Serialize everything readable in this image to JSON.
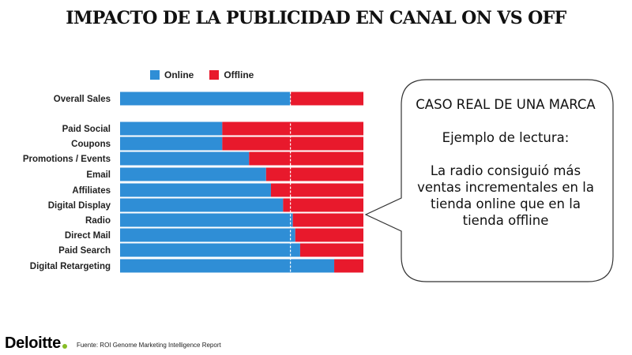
{
  "page": {
    "title": "IMPACTO DE LA PUBLICIDAD EN CANAL ON VS OFF"
  },
  "chart_data": {
    "type": "bar",
    "orientation": "horizontal",
    "stacked": true,
    "normalized_percent": true,
    "categories": [
      "Overall Sales",
      "Paid Social",
      "Coupons",
      "Promotions / Events",
      "Email",
      "Affiliates",
      "Digital Display",
      "Radio",
      "Direct Mail",
      "Paid Search",
      "Digital Retargeting"
    ],
    "series": [
      {
        "name": "Online",
        "color": "#2f8ed6",
        "values": [
          70,
          42,
          42,
          53,
          60,
          62,
          67,
          71,
          72,
          74,
          88
        ]
      },
      {
        "name": "Offline",
        "color": "#e8192c",
        "values": [
          30,
          58,
          58,
          47,
          40,
          38,
          33,
          29,
          28,
          26,
          12
        ]
      }
    ],
    "reference_line": 70,
    "xlim": [
      0,
      100
    ],
    "legend_position": "top"
  },
  "callout": {
    "line1": "CASO REAL DE UNA MARCA",
    "line2": "Ejemplo de lectura:",
    "line3": "La radio consiguió más ventas incrementales en la tienda online que en la tienda offline"
  },
  "footer": {
    "logo": "Deloitte",
    "source": "Fuente: ROI Genome Marketing Intelligence Report"
  }
}
